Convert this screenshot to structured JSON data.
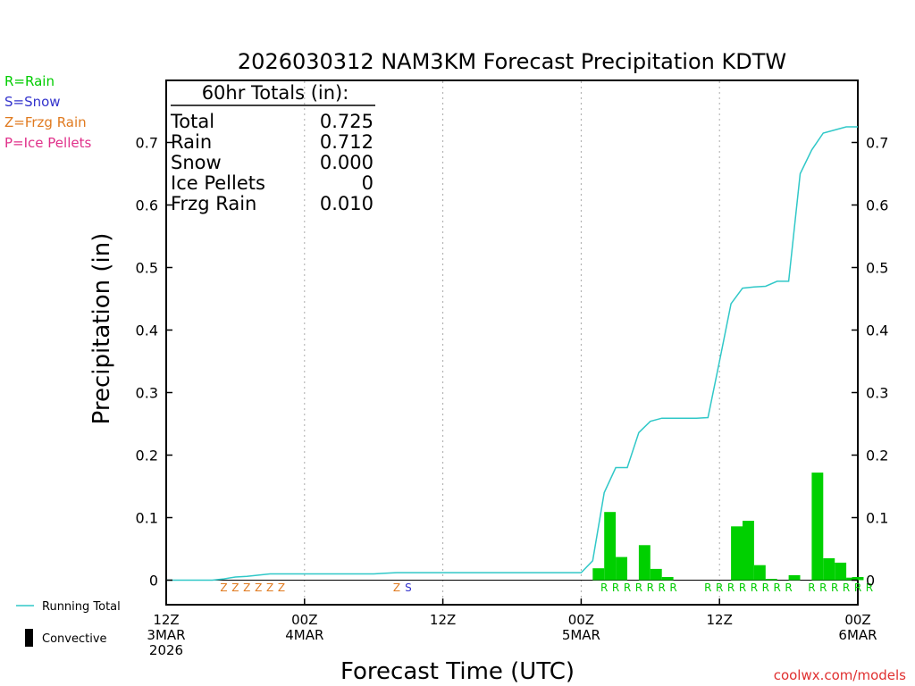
{
  "chart_data": {
    "type": "bar",
    "title": "2026030312 NAM3KM Forecast Precipitation KDTW",
    "xlabel": "Forecast Time (UTC)",
    "ylabel": "Precipitation (in)",
    "ylim": [
      -0.04,
      0.8
    ],
    "xlim_hours": [
      0,
      60
    ],
    "y_ticks": [
      {
        "value": 0.7,
        "label": "0.7"
      },
      {
        "value": 0.6,
        "label": "0.6"
      },
      {
        "value": 0.5,
        "label": "0.5"
      },
      {
        "value": 0.4,
        "label": "0.4"
      },
      {
        "value": 0.3,
        "label": "0.3"
      },
      {
        "value": 0.2,
        "label": "0.2"
      },
      {
        "value": 0.1,
        "label": "0.1"
      },
      {
        "value": 0,
        "label": "0"
      }
    ],
    "x_ticks": [
      {
        "hour": 0,
        "lines": [
          "12Z",
          "3MAR",
          "2026"
        ]
      },
      {
        "hour": 12,
        "lines": [
          "00Z",
          "4MAR"
        ]
      },
      {
        "hour": 24,
        "lines": [
          "12Z"
        ]
      },
      {
        "hour": 36,
        "lines": [
          "00Z",
          "5MAR"
        ]
      },
      {
        "hour": 48,
        "lines": [
          "12Z"
        ]
      },
      {
        "hour": 60,
        "lines": [
          "00Z",
          "6MAR"
        ]
      }
    ],
    "grid_hours": [
      12,
      24,
      36,
      48
    ],
    "bars": [
      {
        "hour": 37.5,
        "value": 0.019
      },
      {
        "hour": 38.5,
        "value": 0.109
      },
      {
        "hour": 39.5,
        "value": 0.037
      },
      {
        "hour": 41.5,
        "value": 0.056
      },
      {
        "hour": 42.5,
        "value": 0.018
      },
      {
        "hour": 43.5,
        "value": 0.005
      },
      {
        "hour": 49.5,
        "value": 0.086
      },
      {
        "hour": 50.5,
        "value": 0.095
      },
      {
        "hour": 51.5,
        "value": 0.024
      },
      {
        "hour": 52.5,
        "value": 0.002
      },
      {
        "hour": 54.5,
        "value": 0.008
      },
      {
        "hour": 56.5,
        "value": 0.172
      },
      {
        "hour": 57.5,
        "value": 0.035
      },
      {
        "hour": 58.5,
        "value": 0.028
      },
      {
        "hour": 59.5,
        "value": 0.004
      },
      {
        "hour": 60.0,
        "value": 0.005
      }
    ],
    "running_total": {
      "hours": [
        0,
        1,
        2,
        3,
        4,
        5,
        6,
        7,
        8,
        9,
        10,
        11,
        12,
        13,
        14,
        15,
        16,
        17,
        18,
        19,
        20,
        21,
        22,
        23,
        24,
        25,
        26,
        27,
        28,
        29,
        30,
        31,
        32,
        33,
        34,
        35,
        36,
        37,
        38,
        39,
        40,
        41,
        42,
        43,
        44,
        45,
        46,
        47,
        48,
        49,
        50,
        51,
        52,
        53,
        54,
        55,
        56,
        57,
        58,
        59,
        60
      ],
      "values": [
        0,
        0,
        0,
        0,
        0,
        0.002,
        0.005,
        0.006,
        0.008,
        0.01,
        0.01,
        0.01,
        0.01,
        0.01,
        0.01,
        0.01,
        0.01,
        0.01,
        0.01,
        0.011,
        0.012,
        0.012,
        0.012,
        0.012,
        0.012,
        0.012,
        0.012,
        0.012,
        0.012,
        0.012,
        0.012,
        0.012,
        0.012,
        0.012,
        0.012,
        0.012,
        0.012,
        0.031,
        0.14,
        0.18,
        0.18,
        0.236,
        0.254,
        0.259,
        0.259,
        0.259,
        0.259,
        0.26,
        0.35,
        0.442,
        0.467,
        0.469,
        0.47,
        0.478,
        0.478,
        0.65,
        0.688,
        0.715,
        0.72,
        0.725,
        0.725
      ]
    },
    "ptype_rows": [
      {
        "type": "Z",
        "hours": [
          5,
          6,
          7,
          8,
          9,
          10
        ]
      },
      {
        "type": "Z",
        "hours": [
          20
        ]
      },
      {
        "type": "S",
        "hours": [
          21
        ]
      },
      {
        "type": "R",
        "hours": [
          38,
          39,
          40,
          41,
          42,
          43,
          44
        ]
      },
      {
        "type": "R",
        "hours": [
          47,
          48,
          49,
          50,
          51,
          52,
          53,
          54
        ]
      },
      {
        "type": "R",
        "hours": [
          56,
          57,
          58,
          59,
          60,
          61
        ]
      }
    ],
    "ptype_colors": {
      "R": "#00cc00",
      "S": "#3333cc",
      "Z": "#e07a1f",
      "P": "#e0308a"
    },
    "bar_color": "#00d000",
    "total_line_color": "#30c8c8",
    "totals_box": {
      "header": "60hr Totals (in):",
      "rows": [
        {
          "label": "Total",
          "value": "0.725"
        },
        {
          "label": "Rain",
          "value": "0.712"
        },
        {
          "label": "Snow",
          "value": "0.000"
        },
        {
          "label": "Ice Pellets",
          "value": "0"
        },
        {
          "label": "Frzg Rain",
          "value": "0.010"
        }
      ]
    },
    "ptype_legend": [
      {
        "text": "R=Rain",
        "color": "#00cc00"
      },
      {
        "text": "S=Snow",
        "color": "#3333cc"
      },
      {
        "text": "Z=Frzg Rain",
        "color": "#e07a1f"
      },
      {
        "text": "P=Ice Pellets",
        "color": "#e0308a"
      }
    ],
    "series_legend": [
      {
        "text": "Running Total",
        "kind": "line"
      },
      {
        "text": "Convective",
        "kind": "bar"
      }
    ],
    "credit": "coolwx.com/models"
  }
}
